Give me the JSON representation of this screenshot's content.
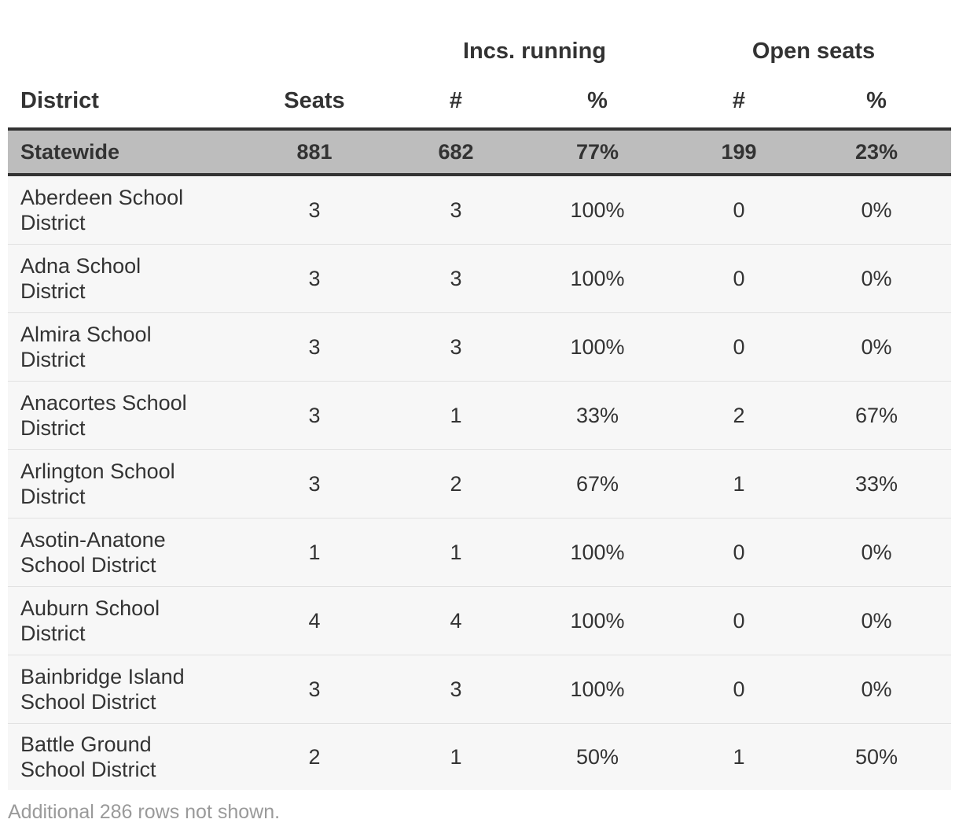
{
  "table": {
    "group_headers": {
      "inc_running": "Incs. running",
      "open_seats": "Open seats"
    },
    "columns": {
      "district": "District",
      "seats": "Seats",
      "inc_n": "#",
      "inc_p": "%",
      "open_n": "#",
      "open_p": "%"
    },
    "statewide": {
      "district": "Statewide",
      "seats": "881",
      "inc_n": "682",
      "inc_p": "77%",
      "open_n": "199",
      "open_p": "23%"
    },
    "rows": [
      {
        "district": "Aberdeen School District",
        "seats": "3",
        "inc_n": "3",
        "inc_p": "100%",
        "open_n": "0",
        "open_p": "0%"
      },
      {
        "district": "Adna School District",
        "seats": "3",
        "inc_n": "3",
        "inc_p": "100%",
        "open_n": "0",
        "open_p": "0%"
      },
      {
        "district": "Almira School District",
        "seats": "3",
        "inc_n": "3",
        "inc_p": "100%",
        "open_n": "0",
        "open_p": "0%"
      },
      {
        "district": "Anacortes School District",
        "seats": "3",
        "inc_n": "1",
        "inc_p": "33%",
        "open_n": "2",
        "open_p": "67%"
      },
      {
        "district": "Arlington School District",
        "seats": "3",
        "inc_n": "2",
        "inc_p": "67%",
        "open_n": "1",
        "open_p": "33%"
      },
      {
        "district": "Asotin-Anatone School District",
        "seats": "1",
        "inc_n": "1",
        "inc_p": "100%",
        "open_n": "0",
        "open_p": "0%"
      },
      {
        "district": "Auburn School District",
        "seats": "4",
        "inc_n": "4",
        "inc_p": "100%",
        "open_n": "0",
        "open_p": "0%"
      },
      {
        "district": "Bainbridge Island School District",
        "seats": "3",
        "inc_n": "3",
        "inc_p": "100%",
        "open_n": "0",
        "open_p": "0%"
      },
      {
        "district": "Battle Ground School District",
        "seats": "2",
        "inc_n": "1",
        "inc_p": "50%",
        "open_n": "1",
        "open_p": "50%"
      }
    ]
  },
  "footnote": "Additional 286 rows not shown."
}
